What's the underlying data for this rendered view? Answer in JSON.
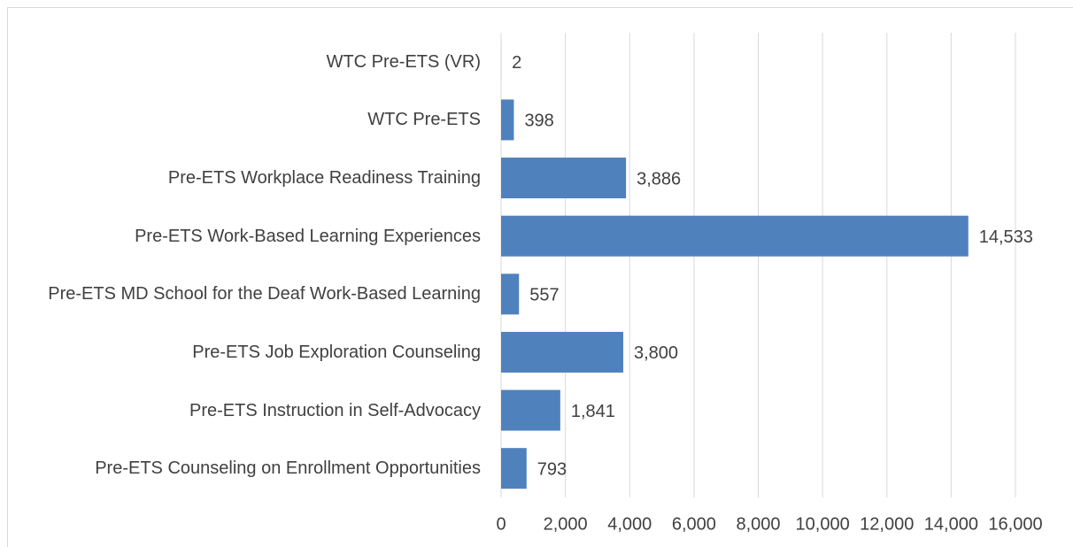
{
  "chart_data": {
    "type": "bar",
    "orientation": "horizontal",
    "categories": [
      "WTC Pre-ETS (VR)",
      "WTC Pre-ETS",
      "Pre-ETS Workplace Readiness Training",
      "Pre-ETS Work-Based Learning Experiences",
      "Pre-ETS MD School for the Deaf Work-Based Learning",
      "Pre-ETS Job Exploration Counseling",
      "Pre-ETS Instruction in Self-Advocacy",
      "Pre-ETS Counseling on Enrollment Opportunities"
    ],
    "values": [
      2,
      398,
      3886,
      14533,
      557,
      3800,
      1841,
      793
    ],
    "value_labels": [
      "2",
      "398",
      "3,886",
      "14,533",
      "557",
      "3,800",
      "1,841",
      "793"
    ],
    "color": "#4f81bd",
    "xlim": [
      0,
      16000
    ],
    "xticks": [
      0,
      {
        "value": 2000,
        "label": "2,000"
      },
      {
        "value": 4000,
        "label": "4,000"
      },
      {
        "value": 6000,
        "label": "6,000"
      },
      {
        "value": 8000,
        "label": "8,000"
      },
      {
        "value": 10000,
        "label": "10,000"
      },
      {
        "value": 12000,
        "label": "12,000"
      },
      {
        "value": 14000,
        "label": "14,000"
      },
      {
        "value": 16000,
        "label": "16,000"
      }
    ],
    "grid": true
  }
}
